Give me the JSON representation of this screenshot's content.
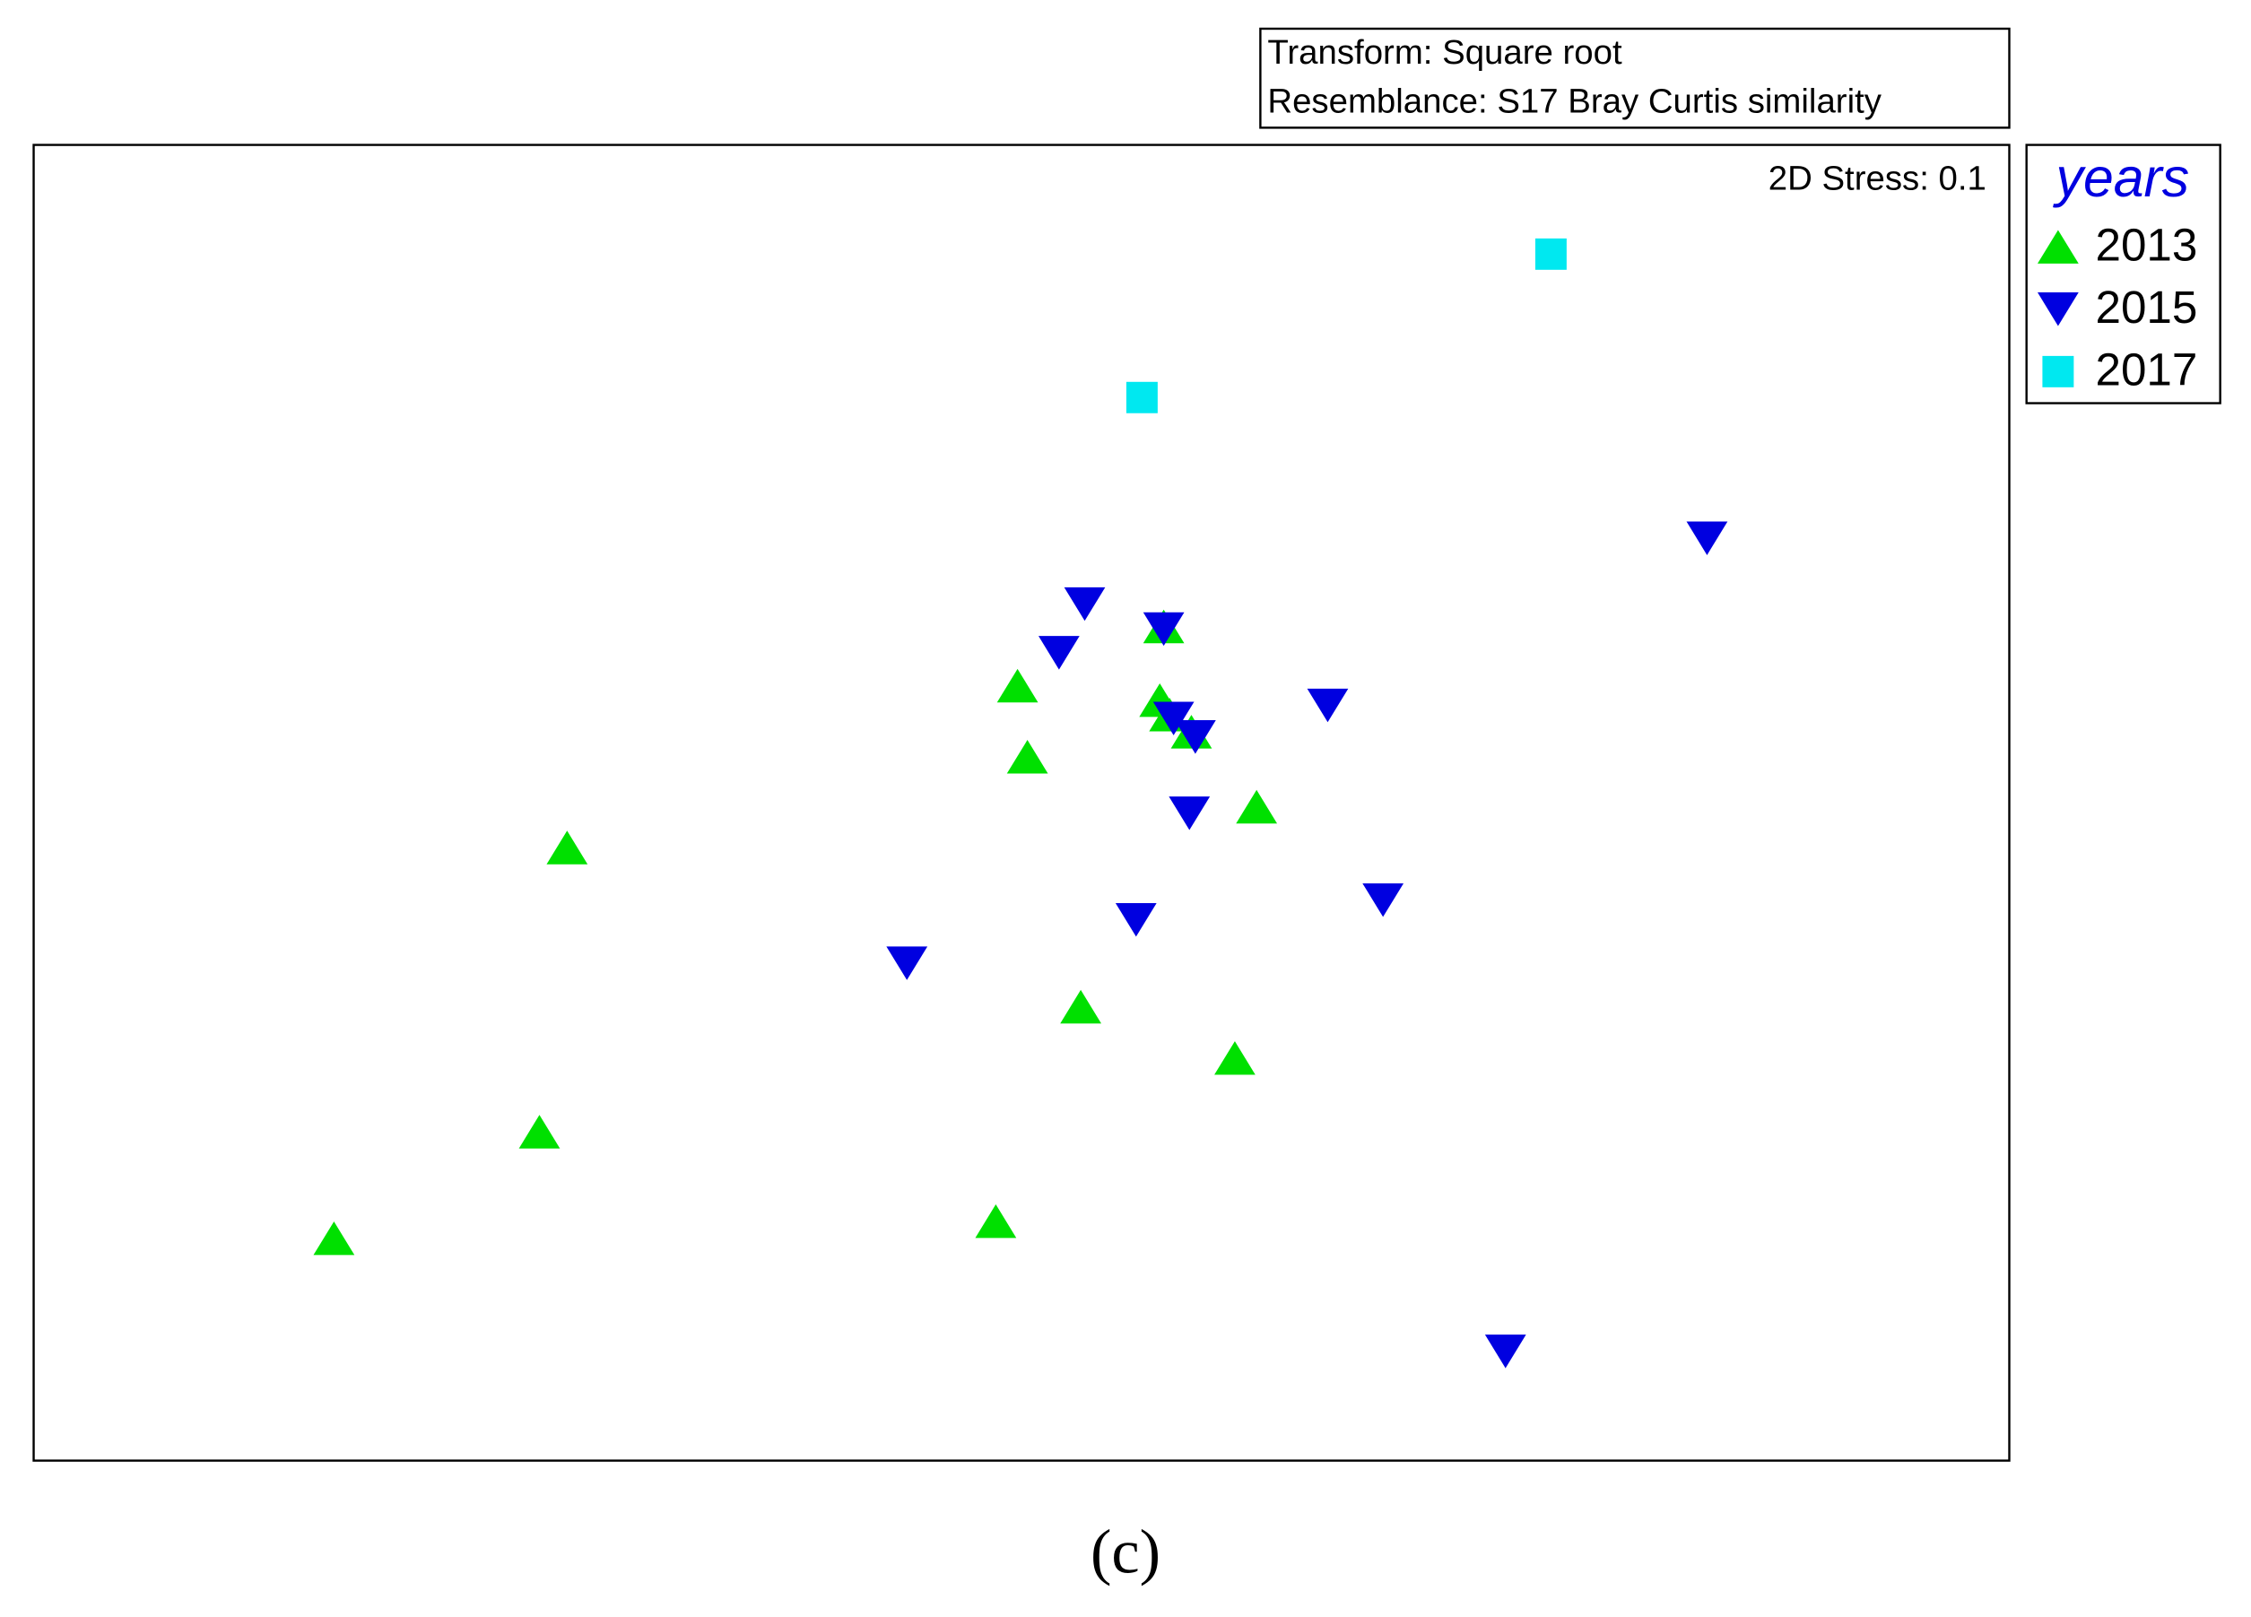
{
  "chart_data": {
    "type": "scatter",
    "annotations": [
      "Transform: Square root",
      "Resemblance: S17 Bray Curtis similarity"
    ],
    "stress_label": "2D Stress: 0.1",
    "legend_title": "years",
    "caption": "(c)",
    "xlim": [
      0,
      100
    ],
    "ylim": [
      0,
      100
    ],
    "series": [
      {
        "name": "2013",
        "color": "#00e000",
        "marker": "triangle-up",
        "x": [
          57.2,
          49.8,
          57.0,
          57.5,
          58.6,
          50.3,
          61.9,
          27.0,
          53.0,
          60.8,
          25.6,
          48.7,
          15.2
        ],
        "values": [
          63.4,
          58.9,
          57.8,
          56.7,
          55.4,
          53.5,
          49.7,
          46.6,
          34.5,
          30.6,
          25.0,
          18.2,
          16.9
        ]
      },
      {
        "name": "2015",
        "color": "#0000e0",
        "marker": "triangle-down",
        "x": [
          84.7,
          53.2,
          57.2,
          51.9,
          65.5,
          57.7,
          58.8,
          58.5,
          68.3,
          55.8,
          44.2,
          74.5
        ],
        "values": [
          70.1,
          65.1,
          63.2,
          61.4,
          57.4,
          56.4,
          55.0,
          49.2,
          42.6,
          41.1,
          37.8,
          8.3
        ]
      },
      {
        "name": "2017",
        "color": "#00e8f0",
        "marker": "square",
        "x": [
          76.8,
          56.1
        ],
        "values": [
          91.7,
          80.8
        ]
      }
    ]
  }
}
